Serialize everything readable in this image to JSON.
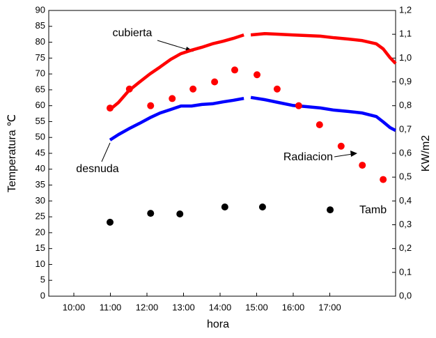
{
  "chart_data": {
    "type": "line",
    "xlabel": "hora",
    "ylabel": "Temperatura ℃",
    "y2label": "KW/m2",
    "xlim": [
      9.314,
      18.8
    ],
    "xticks": [
      {
        "value": 10,
        "label": "10:00"
      },
      {
        "value": 11,
        "label": "11:00"
      },
      {
        "value": 12,
        "label": "12:00"
      },
      {
        "value": 13,
        "label": "13:00"
      },
      {
        "value": 14,
        "label": "14:00"
      },
      {
        "value": 15,
        "label": "15:00"
      },
      {
        "value": 16,
        "label": "16:00"
      },
      {
        "value": 17,
        "label": "17:00"
      }
    ],
    "ylim": [
      0,
      90
    ],
    "yticks": [
      0,
      5,
      10,
      15,
      20,
      25,
      30,
      35,
      40,
      45,
      50,
      55,
      60,
      65,
      70,
      75,
      80,
      85,
      90
    ],
    "y2lim": [
      0,
      1.2
    ],
    "y2ticks": [
      {
        "value": 0,
        "label": "0,0"
      },
      {
        "value": 0.1,
        "label": "0,1"
      },
      {
        "value": 0.2,
        "label": "0,2"
      },
      {
        "value": 0.3,
        "label": "0,3"
      },
      {
        "value": 0.4,
        "label": "0,4"
      },
      {
        "value": 0.5,
        "label": "0,5"
      },
      {
        "value": 0.6,
        "label": "0,6"
      },
      {
        "value": 0.7,
        "label": "0,7"
      },
      {
        "value": 0.8,
        "label": "0,8"
      },
      {
        "value": 0.9,
        "label": "0,9"
      },
      {
        "value": 1.0,
        "label": "1,0"
      },
      {
        "value": 1.1,
        "label": "1,1"
      },
      {
        "value": 1.2,
        "label": "1,2"
      }
    ],
    "series": [
      {
        "name": "cubierta",
        "color": "#ff0000",
        "mark": "line",
        "x": [
          10.99,
          11.22,
          11.5,
          11.79,
          12.08,
          12.36,
          12.65,
          12.93,
          13.22,
          13.5,
          13.79,
          14.08,
          14.36,
          14.65,
          14.75,
          14.84,
          15.22,
          15.6,
          15.98,
          16.36,
          16.74,
          17.12,
          17.5,
          17.89,
          18.27,
          18.46,
          18.65,
          18.8
        ],
        "values": [
          58.8,
          61,
          64.7,
          67.4,
          70,
          72.2,
          74.6,
          76.4,
          77.5,
          78.4,
          79.5,
          80.3,
          81.2,
          82.3,
          null,
          82.3,
          82.7,
          82.5,
          82.3,
          82.1,
          81.9,
          81.4,
          81,
          80.5,
          79.5,
          77.9,
          75.1,
          73.3
        ]
      },
      {
        "name": "desnuda",
        "color": "#0000ff",
        "mark": "line",
        "x": [
          10.99,
          11.22,
          11.5,
          11.79,
          12.08,
          12.36,
          12.65,
          12.93,
          13.22,
          13.5,
          13.79,
          14.08,
          14.36,
          14.65,
          14.75,
          14.84,
          15.22,
          15.6,
          15.98,
          16.36,
          16.74,
          17.12,
          17.5,
          17.89,
          18.27,
          18.46,
          18.65,
          18.8
        ],
        "values": [
          49.2,
          50.9,
          52.7,
          54.4,
          56.2,
          57.7,
          58.8,
          59.9,
          59.9,
          60.4,
          60.6,
          61.2,
          61.7,
          62.3,
          null,
          62.6,
          61.9,
          61,
          60.1,
          59.7,
          59.3,
          58.6,
          58.2,
          57.7,
          56.6,
          54.9,
          53.1,
          52.2
        ]
      },
      {
        "name": "Radiacion",
        "color": "#ff0000",
        "mark": "dot",
        "axis": "y2",
        "x": [
          10.99,
          11.52,
          12.1,
          12.69,
          13.26,
          13.85,
          14.4,
          15.01,
          15.56,
          16.15,
          16.72,
          17.31,
          17.89,
          18.46
        ],
        "values": [
          0.79,
          0.87,
          0.8,
          0.83,
          0.87,
          0.9,
          0.95,
          0.93,
          0.87,
          0.8,
          0.72,
          0.63,
          0.55,
          0.49
        ]
      },
      {
        "name": "Tamb",
        "color": "#000000",
        "mark": "dot",
        "x": [
          10.99,
          12.1,
          12.9,
          14.13,
          15.16,
          17.01
        ],
        "values": [
          23.3,
          26.1,
          25.9,
          28.1,
          28.1,
          27.2
        ]
      }
    ]
  }
}
